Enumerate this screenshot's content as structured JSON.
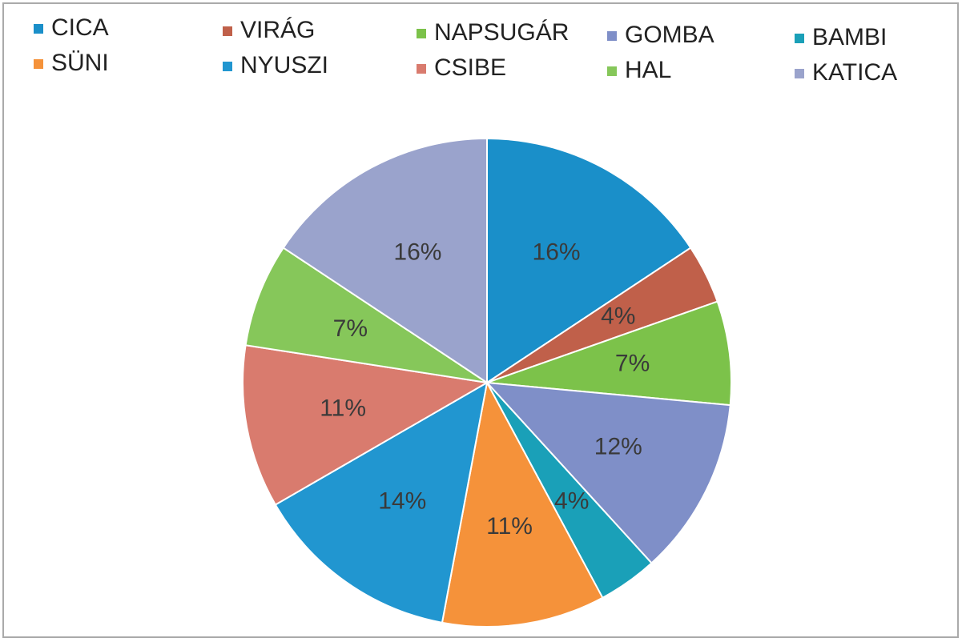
{
  "chart_data": {
    "type": "pie",
    "categories": [
      "CICA",
      "VIRÁG",
      "NAPSUGÁR",
      "GOMBA",
      "BAMBI",
      "SÜNI",
      "NYUSZI",
      "CSIBE",
      "HAL",
      "KATICA"
    ],
    "values": [
      16,
      4,
      7,
      12,
      4,
      11,
      14,
      11,
      7,
      16
    ],
    "value_labels": [
      "16%",
      "4%",
      "7%",
      "12%",
      "4%",
      "11%",
      "14%",
      "11%",
      "7%",
      "16%"
    ],
    "colors": [
      "#1a8fc9",
      "#c0604a",
      "#7cc24a",
      "#7f8fc8",
      "#1aa0b8",
      "#f5923a",
      "#2196d0",
      "#d97b6e",
      "#86c75a",
      "#9aa3cc"
    ],
    "legend": "top"
  }
}
